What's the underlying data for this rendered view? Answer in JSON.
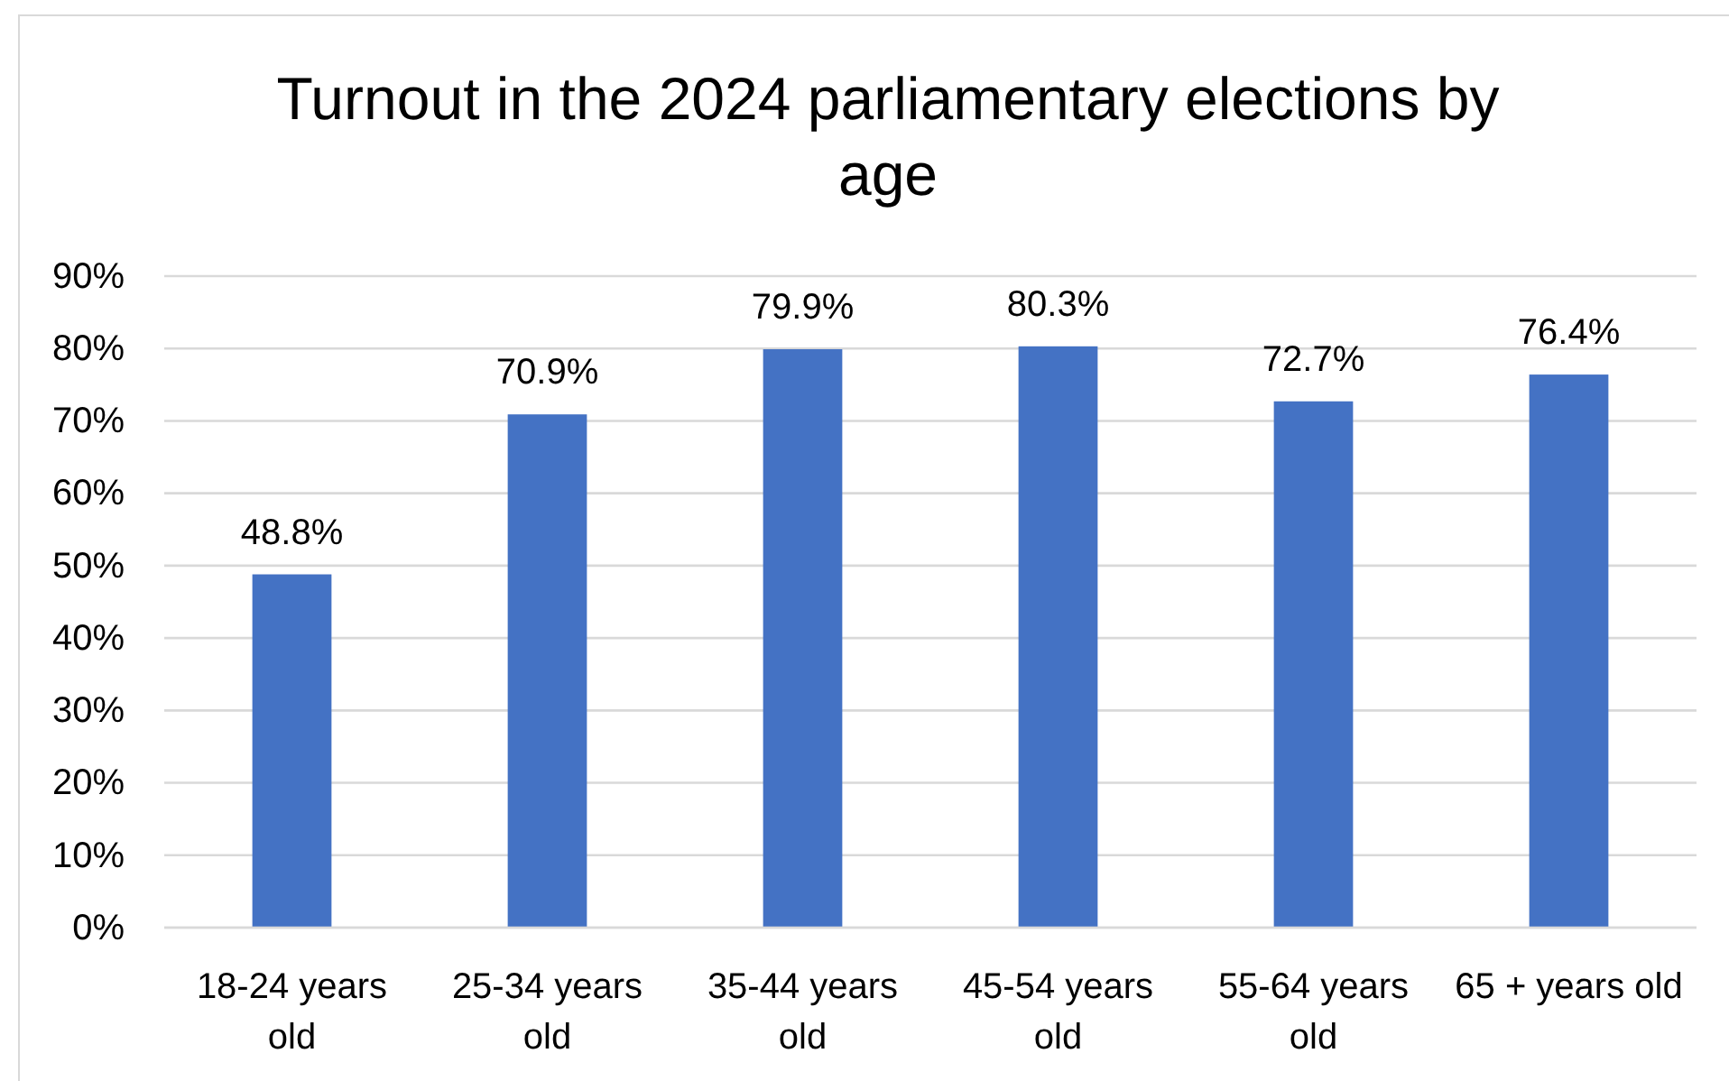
{
  "chart_data": {
    "type": "bar",
    "title": "Turnout in the 2024 parliamentary elections by age",
    "categories": [
      "18-24 years old",
      "25-34 years old",
      "35-44 years old",
      "45-54 years old",
      "55-64 years old",
      "65 + years old"
    ],
    "values": [
      48.8,
      70.9,
      79.9,
      80.3,
      72.7,
      76.4
    ],
    "value_labels": [
      "48.8%",
      "70.9%",
      "79.9%",
      "80.3%",
      "72.7%",
      "76.4%"
    ],
    "color": "#4472c4",
    "ylim": [
      0,
      90
    ],
    "yticks": [
      {
        "value": 0,
        "label": "0%"
      },
      {
        "value": 10,
        "label": "10%"
      },
      {
        "value": 20,
        "label": "20%"
      },
      {
        "value": 30,
        "label": "30%"
      },
      {
        "value": 40,
        "label": "40%"
      },
      {
        "value": 50,
        "label": "50%"
      },
      {
        "value": 60,
        "label": "60%"
      },
      {
        "value": 70,
        "label": "70%"
      },
      {
        "value": 80,
        "label": "80%"
      },
      {
        "value": 90,
        "label": "90%"
      }
    ],
    "grid": "y"
  }
}
